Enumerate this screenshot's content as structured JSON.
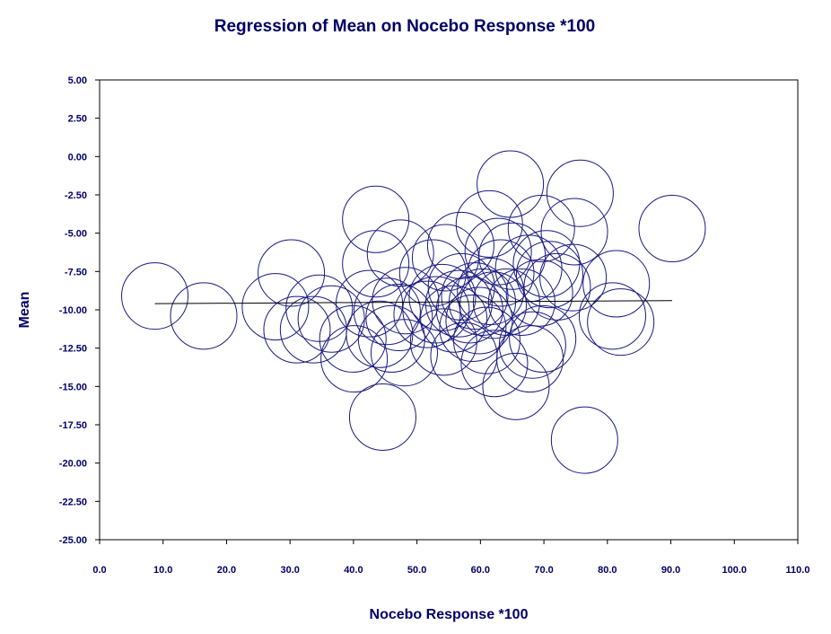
{
  "chart_data": {
    "type": "scatter",
    "title": "Regression of Mean on Nocebo Response *100",
    "xlabel": "Nocebo Response *100",
    "ylabel": "Mean",
    "xlim": [
      0,
      110
    ],
    "ylim": [
      -25,
      5
    ],
    "xticks": [
      "0.0",
      "10.0",
      "20.0",
      "30.0",
      "40.0",
      "50.0",
      "60.0",
      "70.0",
      "80.0",
      "90.0",
      "100.0",
      "110.0"
    ],
    "yticks": [
      "5.00",
      "2.50",
      "0.00",
      "-2.50",
      "-5.00",
      "-7.50",
      "-10.00",
      "-12.50",
      "-15.00",
      "-17.50",
      "-20.00",
      "-22.50",
      "-25.00"
    ],
    "marker": "hollow-circle",
    "marker_color": "#1a1a80",
    "points": [
      {
        "x": 8.7,
        "y": -9.1
      },
      {
        "x": 16.4,
        "y": -10.4
      },
      {
        "x": 27.7,
        "y": -9.8
      },
      {
        "x": 30.2,
        "y": -7.6
      },
      {
        "x": 31.1,
        "y": -11.3
      },
      {
        "x": 33.7,
        "y": -11.3
      },
      {
        "x": 34.6,
        "y": -9.9
      },
      {
        "x": 36.5,
        "y": -10.6
      },
      {
        "x": 39.9,
        "y": -11.9
      },
      {
        "x": 40.1,
        "y": -13.2
      },
      {
        "x": 42.5,
        "y": -9.6
      },
      {
        "x": 43.5,
        "y": -4.1
      },
      {
        "x": 43.5,
        "y": -7.0
      },
      {
        "x": 44.1,
        "y": -11.6
      },
      {
        "x": 44.6,
        "y": -17.0
      },
      {
        "x": 45.3,
        "y": -10.1
      },
      {
        "x": 46.0,
        "y": -11.9
      },
      {
        "x": 47.2,
        "y": -10.5
      },
      {
        "x": 47.4,
        "y": -6.3
      },
      {
        "x": 48.0,
        "y": -12.8
      },
      {
        "x": 48.2,
        "y": -9.4
      },
      {
        "x": 51.6,
        "y": -10.3
      },
      {
        "x": 52.5,
        "y": -7.6
      },
      {
        "x": 53.0,
        "y": -10.0
      },
      {
        "x": 54.0,
        "y": -9.2
      },
      {
        "x": 54.2,
        "y": -12.1
      },
      {
        "x": 54.5,
        "y": -6.6
      },
      {
        "x": 55.8,
        "y": -10.6
      },
      {
        "x": 56.6,
        "y": -9.6
      },
      {
        "x": 56.9,
        "y": -5.8
      },
      {
        "x": 57.0,
        "y": -8.5
      },
      {
        "x": 57.4,
        "y": -13.0
      },
      {
        "x": 58.3,
        "y": -10.0
      },
      {
        "x": 58.8,
        "y": -11.2
      },
      {
        "x": 59.1,
        "y": -9.1
      },
      {
        "x": 59.8,
        "y": -10.7
      },
      {
        "x": 60.3,
        "y": -9.5
      },
      {
        "x": 61.0,
        "y": -12.0
      },
      {
        "x": 61.4,
        "y": -4.4
      },
      {
        "x": 61.6,
        "y": -8.8
      },
      {
        "x": 62.0,
        "y": -9.7
      },
      {
        "x": 62.2,
        "y": -13.5
      },
      {
        "x": 62.8,
        "y": -6.2
      },
      {
        "x": 63.2,
        "y": -7.6
      },
      {
        "x": 64.1,
        "y": -9.5
      },
      {
        "x": 64.7,
        "y": -1.8
      },
      {
        "x": 65.0,
        "y": -6.5
      },
      {
        "x": 65.6,
        "y": -15.0
      },
      {
        "x": 66.5,
        "y": -9.5
      },
      {
        "x": 67.6,
        "y": -7.3
      },
      {
        "x": 67.8,
        "y": -13.2
      },
      {
        "x": 68.2,
        "y": -12.3
      },
      {
        "x": 69.3,
        "y": -8.9
      },
      {
        "x": 69.6,
        "y": -4.7
      },
      {
        "x": 69.8,
        "y": -11.9
      },
      {
        "x": 70.4,
        "y": -7.0
      },
      {
        "x": 70.9,
        "y": -7.7
      },
      {
        "x": 72.1,
        "y": -8.5
      },
      {
        "x": 74.6,
        "y": -7.9
      },
      {
        "x": 74.8,
        "y": -4.9
      },
      {
        "x": 75.7,
        "y": -2.4
      },
      {
        "x": 76.4,
        "y": -18.5
      },
      {
        "x": 80.8,
        "y": -10.4
      },
      {
        "x": 81.4,
        "y": -8.3
      },
      {
        "x": 82.1,
        "y": -10.8
      },
      {
        "x": 90.2,
        "y": -4.7
      }
    ],
    "regression_line": {
      "x": [
        8.7,
        90.2
      ],
      "y": [
        -9.6,
        -9.4
      ]
    },
    "grid": false,
    "legend": "none"
  }
}
